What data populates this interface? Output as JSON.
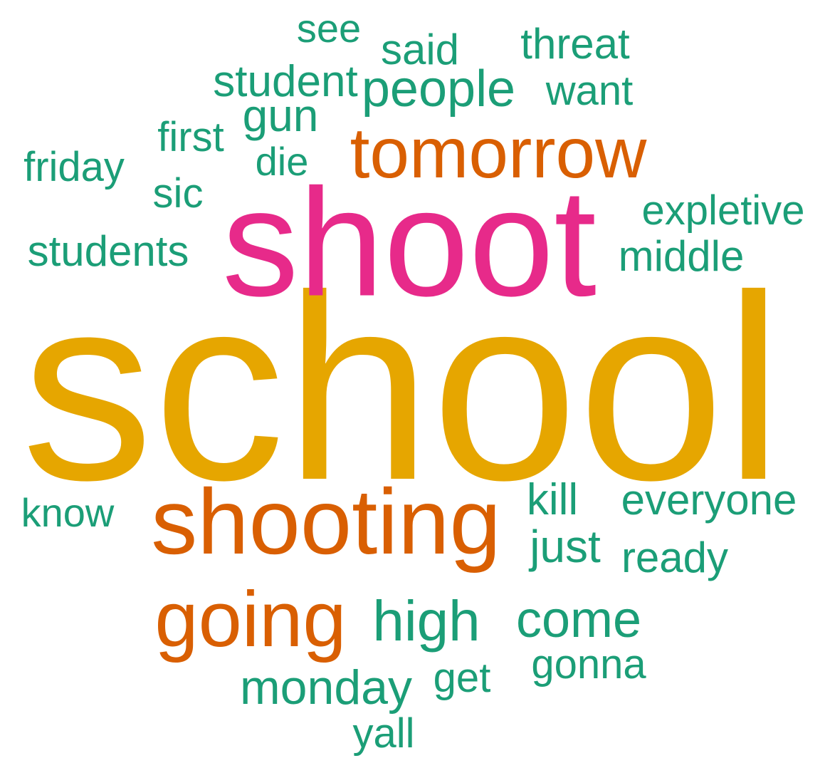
{
  "palette": {
    "top": "#E6A600",
    "high": "#E72A8A",
    "mid": "#D95F02",
    "low": "#1B9E77"
  },
  "words": [
    {
      "text": "school",
      "tier": "top"
    },
    {
      "text": "shoot",
      "tier": "high"
    },
    {
      "text": "tomorrow",
      "tier": "mid"
    },
    {
      "text": "shooting",
      "tier": "mid"
    },
    {
      "text": "going",
      "tier": "mid"
    },
    {
      "text": "see",
      "tier": "low"
    },
    {
      "text": "said",
      "tier": "low"
    },
    {
      "text": "threat",
      "tier": "low"
    },
    {
      "text": "student",
      "tier": "low"
    },
    {
      "text": "people",
      "tier": "low"
    },
    {
      "text": "want",
      "tier": "low"
    },
    {
      "text": "gun",
      "tier": "low"
    },
    {
      "text": "first",
      "tier": "low"
    },
    {
      "text": "friday",
      "tier": "low"
    },
    {
      "text": "die",
      "tier": "low"
    },
    {
      "text": "sic",
      "tier": "low"
    },
    {
      "text": "expletive",
      "tier": "low"
    },
    {
      "text": "students",
      "tier": "low"
    },
    {
      "text": "middle",
      "tier": "low"
    },
    {
      "text": "know",
      "tier": "low"
    },
    {
      "text": "kill",
      "tier": "low"
    },
    {
      "text": "everyone",
      "tier": "low"
    },
    {
      "text": "just",
      "tier": "low"
    },
    {
      "text": "ready",
      "tier": "low"
    },
    {
      "text": "high",
      "tier": "low"
    },
    {
      "text": "come",
      "tier": "low"
    },
    {
      "text": "gonna",
      "tier": "low"
    },
    {
      "text": "get",
      "tier": "low"
    },
    {
      "text": "monday",
      "tier": "low"
    },
    {
      "text": "yall",
      "tier": "low"
    }
  ]
}
